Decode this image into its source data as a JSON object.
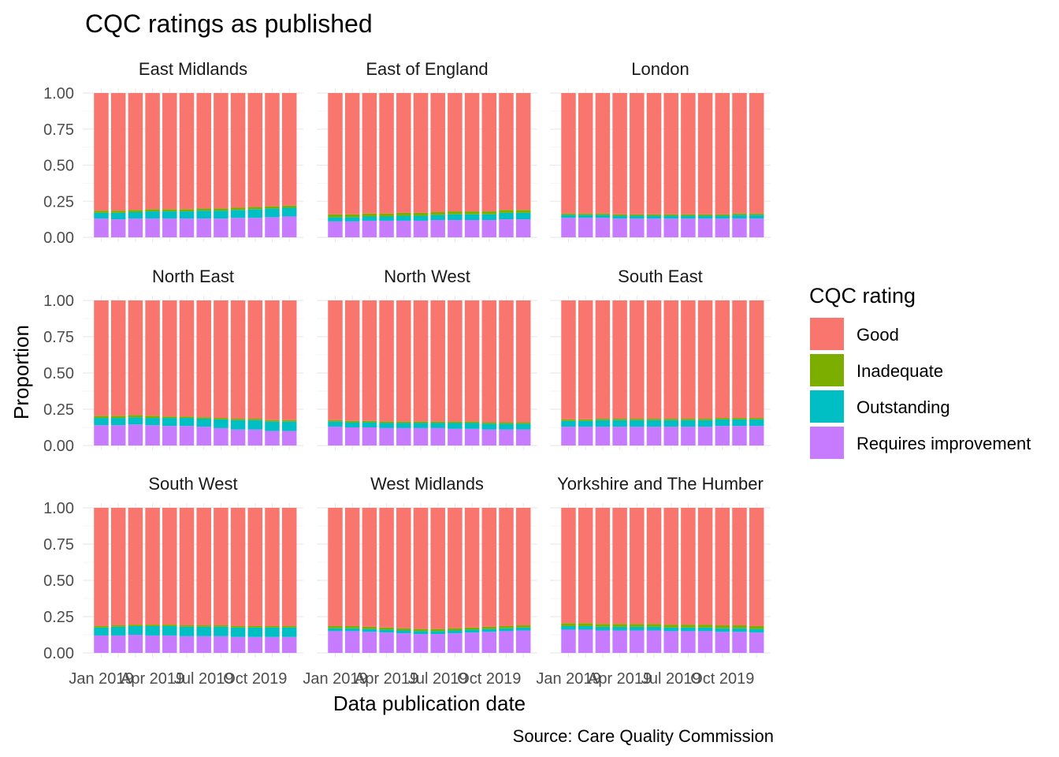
{
  "chart_data": {
    "type": "bar",
    "stacked": true,
    "title": "CQC ratings as published",
    "xlabel": "Data publication date",
    "ylabel": "Proportion",
    "caption": "Source: Care Quality Commission",
    "ylim": [
      0,
      1
    ],
    "y_ticks": [
      "0.00",
      "0.25",
      "0.50",
      "0.75",
      "1.00"
    ],
    "x_tick_labels": [
      "Jan 2019",
      "Apr 2019",
      "Jul 2019",
      "Oct 2019"
    ],
    "x_tick_bar_index": [
      0,
      3,
      6,
      9
    ],
    "grid": true,
    "legend": {
      "title": "CQC rating",
      "position": "right",
      "entries": [
        "Good",
        "Inadequate",
        "Outstanding",
        "Requires improvement"
      ]
    },
    "colors": {
      "Good": "#F8766D",
      "Inadequate": "#7CAE00",
      "Outstanding": "#00BFC4",
      "Requires improvement": "#C77CFF"
    },
    "stack_order_bottom_to_top": [
      "Requires improvement",
      "Outstanding",
      "Inadequate",
      "Good"
    ],
    "categories": [
      "Jan 2019",
      "Feb 2019",
      "Mar 2019",
      "Apr 2019",
      "May 2019",
      "Jun 2019",
      "Jul 2019",
      "Aug 2019",
      "Sep 2019",
      "Oct 2019",
      "Nov 2019",
      "Dec 2019"
    ],
    "facets": [
      {
        "name": "East Midlands",
        "series": [
          {
            "name": "Requires improvement",
            "values": [
              0.13,
              0.125,
              0.13,
              0.13,
              0.13,
              0.13,
              0.13,
              0.13,
              0.135,
              0.135,
              0.14,
              0.145
            ]
          },
          {
            "name": "Outstanding",
            "values": [
              0.04,
              0.045,
              0.045,
              0.05,
              0.05,
              0.05,
              0.055,
              0.055,
              0.055,
              0.06,
              0.06,
              0.06
            ]
          },
          {
            "name": "Inadequate",
            "values": [
              0.015,
              0.015,
              0.015,
              0.015,
              0.015,
              0.015,
              0.015,
              0.015,
              0.015,
              0.015,
              0.015,
              0.015
            ]
          }
        ]
      },
      {
        "name": "East of England",
        "series": [
          {
            "name": "Requires improvement",
            "values": [
              0.11,
              0.11,
              0.115,
              0.115,
              0.115,
              0.115,
              0.12,
              0.12,
              0.12,
              0.12,
              0.125,
              0.125
            ]
          },
          {
            "name": "Outstanding",
            "values": [
              0.03,
              0.03,
              0.03,
              0.03,
              0.035,
              0.035,
              0.035,
              0.04,
              0.04,
              0.04,
              0.045,
              0.045
            ]
          },
          {
            "name": "Inadequate",
            "values": [
              0.02,
              0.02,
              0.02,
              0.02,
              0.02,
              0.02,
              0.02,
              0.02,
              0.02,
              0.02,
              0.02,
              0.02
            ]
          }
        ]
      },
      {
        "name": "London",
        "series": [
          {
            "name": "Requires improvement",
            "values": [
              0.135,
              0.135,
              0.135,
              0.13,
              0.13,
              0.13,
              0.13,
              0.13,
              0.13,
              0.13,
              0.13,
              0.13
            ]
          },
          {
            "name": "Outstanding",
            "values": [
              0.02,
              0.02,
              0.02,
              0.02,
              0.02,
              0.02,
              0.02,
              0.02,
              0.02,
              0.02,
              0.025,
              0.025
            ]
          },
          {
            "name": "Inadequate",
            "values": [
              0.01,
              0.01,
              0.01,
              0.01,
              0.01,
              0.01,
              0.01,
              0.01,
              0.01,
              0.01,
              0.01,
              0.01
            ]
          }
        ]
      },
      {
        "name": "North East",
        "series": [
          {
            "name": "Requires improvement",
            "values": [
              0.14,
              0.14,
              0.145,
              0.14,
              0.135,
              0.135,
              0.13,
              0.12,
              0.11,
              0.11,
              0.1,
              0.1
            ]
          },
          {
            "name": "Outstanding",
            "values": [
              0.05,
              0.05,
              0.05,
              0.05,
              0.055,
              0.055,
              0.055,
              0.06,
              0.065,
              0.065,
              0.065,
              0.065
            ]
          },
          {
            "name": "Inadequate",
            "values": [
              0.015,
              0.015,
              0.015,
              0.015,
              0.01,
              0.01,
              0.01,
              0.01,
              0.01,
              0.01,
              0.01,
              0.01
            ]
          }
        ]
      },
      {
        "name": "North West",
        "series": [
          {
            "name": "Requires improvement",
            "values": [
              0.13,
              0.125,
              0.125,
              0.12,
              0.12,
              0.12,
              0.12,
              0.115,
              0.115,
              0.11,
              0.11,
              0.11
            ]
          },
          {
            "name": "Outstanding",
            "values": [
              0.035,
              0.035,
              0.035,
              0.035,
              0.035,
              0.035,
              0.035,
              0.04,
              0.04,
              0.04,
              0.04,
              0.04
            ]
          },
          {
            "name": "Inadequate",
            "values": [
              0.01,
              0.01,
              0.01,
              0.01,
              0.01,
              0.01,
              0.01,
              0.01,
              0.01,
              0.01,
              0.01,
              0.01
            ]
          }
        ]
      },
      {
        "name": "South East",
        "series": [
          {
            "name": "Requires improvement",
            "values": [
              0.13,
              0.13,
              0.13,
              0.13,
              0.13,
              0.13,
              0.13,
              0.13,
              0.13,
              0.135,
              0.135,
              0.135
            ]
          },
          {
            "name": "Outstanding",
            "values": [
              0.04,
              0.04,
              0.045,
              0.045,
              0.045,
              0.045,
              0.045,
              0.045,
              0.045,
              0.045,
              0.045,
              0.045
            ]
          },
          {
            "name": "Inadequate",
            "values": [
              0.01,
              0.01,
              0.01,
              0.01,
              0.01,
              0.01,
              0.01,
              0.01,
              0.01,
              0.01,
              0.01,
              0.01
            ]
          }
        ]
      },
      {
        "name": "South West",
        "series": [
          {
            "name": "Requires improvement",
            "values": [
              0.12,
              0.12,
              0.125,
              0.12,
              0.12,
              0.115,
              0.115,
              0.115,
              0.11,
              0.11,
              0.11,
              0.11
            ]
          },
          {
            "name": "Outstanding",
            "values": [
              0.055,
              0.06,
              0.06,
              0.065,
              0.065,
              0.065,
              0.065,
              0.065,
              0.065,
              0.065,
              0.065,
              0.065
            ]
          },
          {
            "name": "Inadequate",
            "values": [
              0.01,
              0.01,
              0.01,
              0.01,
              0.01,
              0.01,
              0.01,
              0.01,
              0.01,
              0.01,
              0.01,
              0.01
            ]
          }
        ]
      },
      {
        "name": "West Midlands",
        "series": [
          {
            "name": "Requires improvement",
            "values": [
              0.15,
              0.15,
              0.145,
              0.14,
              0.135,
              0.13,
              0.13,
              0.135,
              0.14,
              0.145,
              0.15,
              0.155
            ]
          },
          {
            "name": "Outstanding",
            "values": [
              0.02,
              0.02,
              0.02,
              0.02,
              0.02,
              0.02,
              0.02,
              0.02,
              0.02,
              0.02,
              0.02,
              0.02
            ]
          },
          {
            "name": "Inadequate",
            "values": [
              0.015,
              0.015,
              0.015,
              0.015,
              0.015,
              0.015,
              0.015,
              0.015,
              0.015,
              0.015,
              0.015,
              0.015
            ]
          }
        ]
      },
      {
        "name": "Yorkshire and The Humber",
        "series": [
          {
            "name": "Requires improvement",
            "values": [
              0.16,
              0.16,
              0.155,
              0.155,
              0.155,
              0.155,
              0.15,
              0.15,
              0.15,
              0.145,
              0.145,
              0.14
            ]
          },
          {
            "name": "Outstanding",
            "values": [
              0.025,
              0.025,
              0.025,
              0.025,
              0.025,
              0.025,
              0.025,
              0.025,
              0.025,
              0.025,
              0.025,
              0.025
            ]
          },
          {
            "name": "Inadequate",
            "values": [
              0.02,
              0.02,
              0.02,
              0.02,
              0.02,
              0.02,
              0.02,
              0.02,
              0.02,
              0.02,
              0.02,
              0.02
            ]
          }
        ]
      }
    ]
  }
}
